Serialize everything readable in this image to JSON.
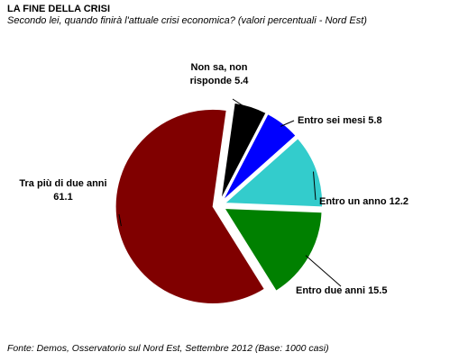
{
  "chart_data": {
    "type": "pie",
    "title": "LA FINE DELLA CRISI",
    "subtitle": "Secondo lei, quando finirà l'attuale crisi economica? (valori percentuali - Nord Est)",
    "source": "Fonte: Demos, Osservatorio sul Nord Est, Settembre 2012 (Base: 1000 casi)",
    "categories": [
      "Non sa, non risponde",
      "Entro sei mesi",
      "Entro un anno",
      "Entro due anni",
      "Tra più di due anni"
    ],
    "values": [
      5.4,
      5.8,
      12.2,
      15.5,
      61.1
    ],
    "colors": [
      "#000000",
      "#0000ff",
      "#33cccc",
      "#008000",
      "#800000"
    ]
  }
}
